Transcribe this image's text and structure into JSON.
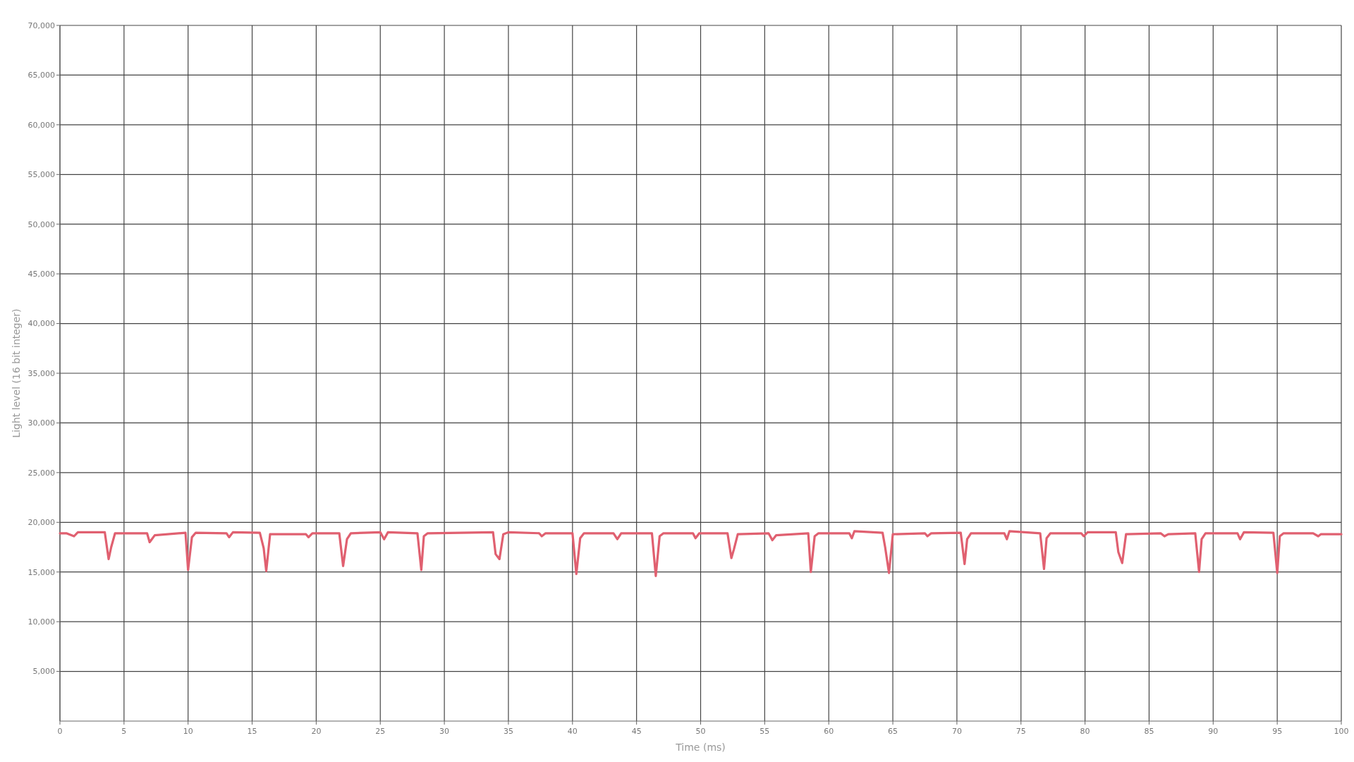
{
  "chart_data": {
    "type": "line",
    "xlabel": "Time (ms)",
    "ylabel": "Light level (16 bit integer)",
    "xlim": [
      0,
      100
    ],
    "ylim": [
      0,
      70000
    ],
    "xticks": [
      0,
      5,
      10,
      15,
      20,
      25,
      30,
      35,
      40,
      45,
      50,
      55,
      60,
      65,
      70,
      75,
      80,
      85,
      90,
      95,
      100
    ],
    "yticks": [
      {
        "value": 5000,
        "label": "5,000"
      },
      {
        "value": 10000,
        "label": "10,000"
      },
      {
        "value": 15000,
        "label": "15,000"
      },
      {
        "value": 20000,
        "label": "20,000"
      },
      {
        "value": 25000,
        "label": "25,000"
      },
      {
        "value": 30000,
        "label": "30,000"
      },
      {
        "value": 35000,
        "label": "35,000"
      },
      {
        "value": 40000,
        "label": "40,000"
      },
      {
        "value": 45000,
        "label": "45,000"
      },
      {
        "value": 50000,
        "label": "50,000"
      },
      {
        "value": 55000,
        "label": "55,000"
      },
      {
        "value": 60000,
        "label": "60,000"
      },
      {
        "value": 65000,
        "label": "65,000"
      },
      {
        "value": 70000,
        "label": "70,000"
      }
    ],
    "grid": true,
    "line_style": "solid",
    "series": [
      {
        "color": "#e06070",
        "x": [
          0,
          0.5,
          1.1,
          1.4,
          3.5,
          3.8,
          4.0,
          4.3,
          6.8,
          7.0,
          7.4,
          9.8,
          10.0,
          10.3,
          10.6,
          13.0,
          13.2,
          13.5,
          15.6,
          15.9,
          16.1,
          16.4,
          19.2,
          19.4,
          19.7,
          21.8,
          22.1,
          22.4,
          22.7,
          25.0,
          25.3,
          25.6,
          27.9,
          28.2,
          28.4,
          28.7,
          33.8,
          34.0,
          34.3,
          34.6,
          35.0,
          37.4,
          37.6,
          37.9,
          40.0,
          40.3,
          40.6,
          40.9,
          43.2,
          43.5,
          43.8,
          46.2,
          46.5,
          46.8,
          47.1,
          49.4,
          49.6,
          49.9,
          52.1,
          52.4,
          52.6,
          52.9,
          55.3,
          55.6,
          55.9,
          58.4,
          58.6,
          58.9,
          59.2,
          61.6,
          61.8,
          62.0,
          64.2,
          64.4,
          64.7,
          65.0,
          67.5,
          67.7,
          68.0,
          70.3,
          70.6,
          70.8,
          71.1,
          73.7,
          73.9,
          74.1,
          76.5,
          76.8,
          77.0,
          77.3,
          79.7,
          79.9,
          80.2,
          82.4,
          82.6,
          82.9,
          83.2,
          85.9,
          86.2,
          86.5,
          88.6,
          88.9,
          89.1,
          89.4,
          91.9,
          92.1,
          92.4,
          94.7,
          95.0,
          95.2,
          95.5,
          97.8,
          98.2,
          98.4,
          100
        ],
        "values": [
          18900,
          18900,
          18600,
          19000,
          19000,
          16300,
          17500,
          18900,
          18900,
          18000,
          18700,
          18950,
          15200,
          18500,
          18950,
          18900,
          18500,
          19000,
          18950,
          17400,
          15100,
          18800,
          18800,
          18500,
          18900,
          18900,
          15600,
          18300,
          18900,
          19000,
          18300,
          19000,
          18900,
          15200,
          18600,
          18900,
          19000,
          16800,
          16300,
          18800,
          19000,
          18900,
          18600,
          18900,
          18900,
          14800,
          18400,
          18900,
          18900,
          18300,
          18900,
          18900,
          14600,
          18600,
          18900,
          18900,
          18400,
          18900,
          18900,
          16400,
          17300,
          18800,
          18900,
          18200,
          18700,
          18900,
          15000,
          18600,
          18900,
          18900,
          18400,
          19100,
          18950,
          17500,
          14900,
          18800,
          18900,
          18600,
          18900,
          18950,
          15800,
          18300,
          18900,
          18900,
          18300,
          19100,
          18900,
          15300,
          18400,
          18900,
          18900,
          18600,
          19000,
          19000,
          17000,
          15900,
          18800,
          18900,
          18600,
          18800,
          18900,
          15000,
          18300,
          18900,
          18900,
          18300,
          19000,
          18950,
          14900,
          18600,
          18900,
          18900,
          18600,
          18800,
          18800
        ]
      }
    ]
  }
}
